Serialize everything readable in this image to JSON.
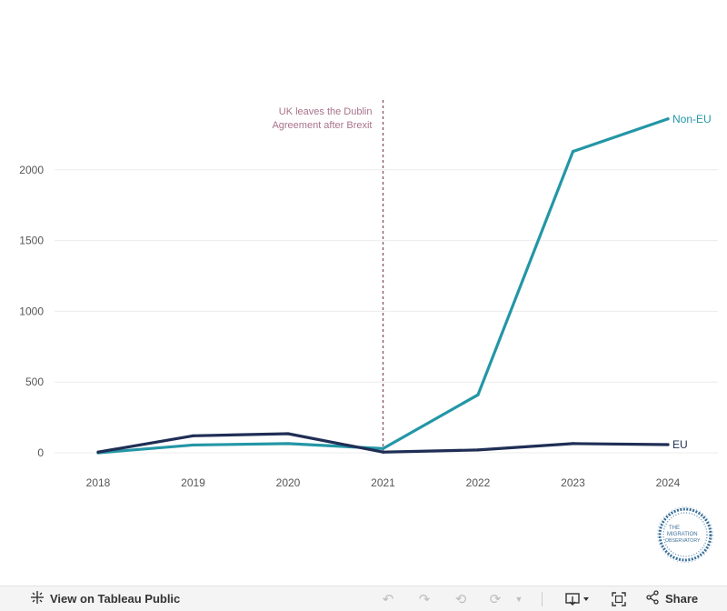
{
  "chart_data": {
    "type": "line",
    "x": [
      2018,
      2019,
      2020,
      2021,
      2022,
      2023,
      2024
    ],
    "series": [
      {
        "name": "Non-EU",
        "color": "#2396a6",
        "values": [
          0,
          55,
          65,
          30,
          410,
          2130,
          2360
        ]
      },
      {
        "name": "EU",
        "color": "#1f2e55",
        "values": [
          5,
          120,
          135,
          5,
          20,
          65,
          58
        ]
      }
    ],
    "ylim": [
      0,
      2400
    ],
    "yticks": [
      0,
      500,
      1000,
      1500,
      2000
    ],
    "ytick_labels": [
      "0",
      "500",
      "1000",
      "1500",
      "2000"
    ],
    "xtick_labels": [
      "2018",
      "2019",
      "2020",
      "2021",
      "2022",
      "2023",
      "2024"
    ],
    "grid": "horizontal",
    "annotation": {
      "x": 2021,
      "lines": [
        "UK leaves the Dublin",
        "Agreement after Brexit"
      ],
      "color": "#a8738a",
      "line_color": "#8a5a6e"
    },
    "title": "",
    "xlabel": "",
    "ylabel": ""
  },
  "logo": {
    "text_lines": [
      "THE",
      "MIGRATION",
      "OBSERVATORY"
    ],
    "color": "#3a6f99",
    "icon": "migration-observatory-logo"
  },
  "toolbar": {
    "view_label": "View on Tableau Public",
    "share_label": "Share",
    "icons": [
      "tableau-icon",
      "undo-icon",
      "redo-icon",
      "revert-icon",
      "refresh-icon",
      "pause-dropdown-icon",
      "download-icon",
      "fullscreen-icon",
      "share-icon"
    ]
  }
}
